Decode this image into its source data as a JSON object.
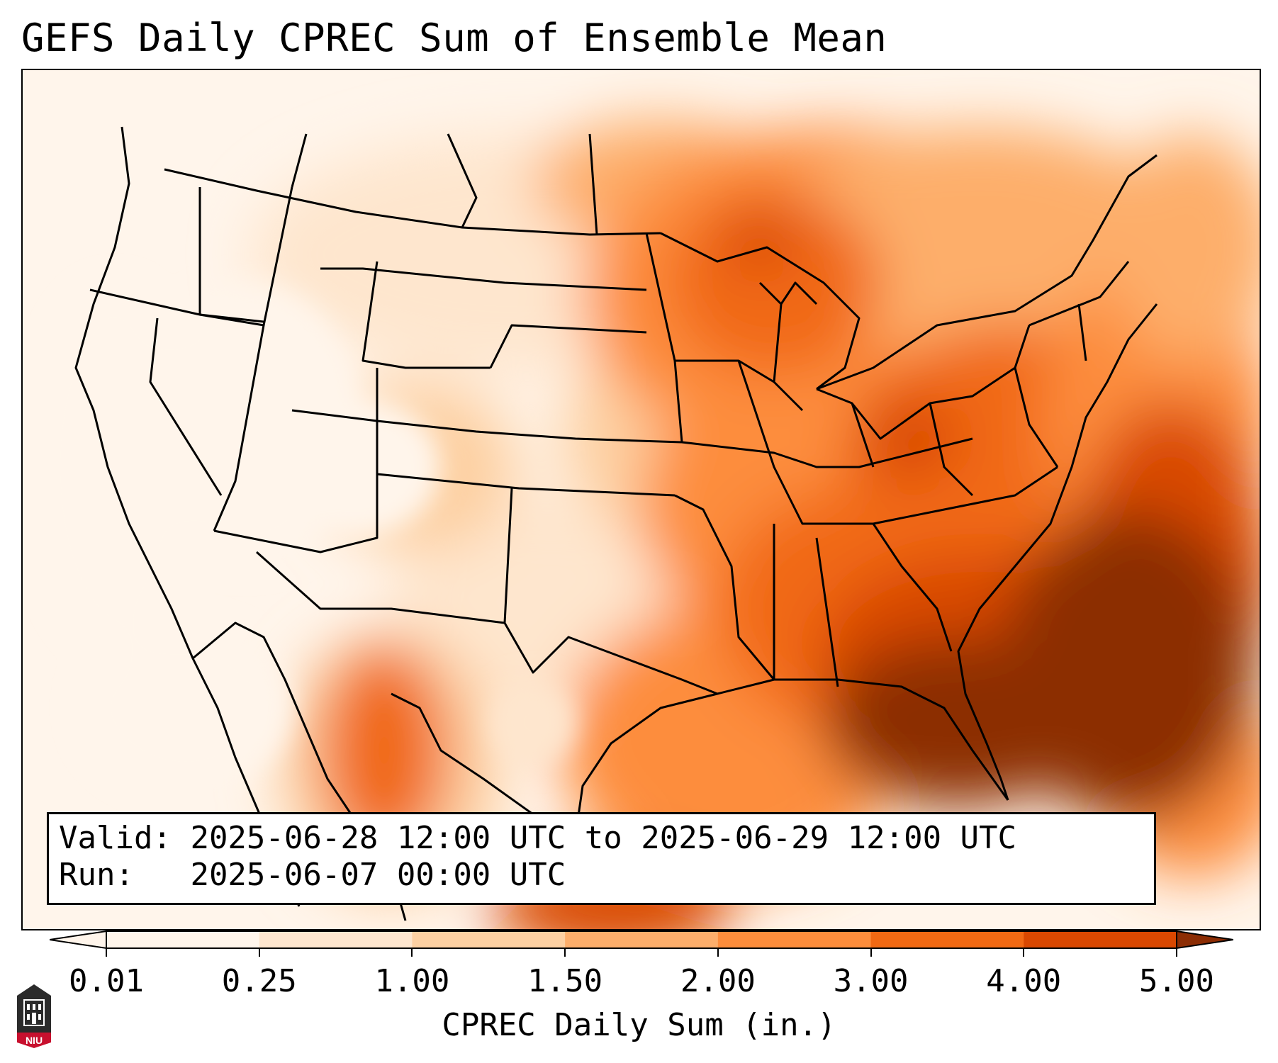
{
  "title": "GEFS Daily CPREC Sum of Ensemble Mean",
  "info": {
    "valid_label": "Valid:",
    "valid_value": "2025-06-28 12:00 UTC to 2025-06-29 12:00 UTC",
    "run_label": "Run:",
    "run_value": "2025-06-07 00:00 UTC"
  },
  "colorbar": {
    "label": "CPREC Daily Sum (in.)",
    "ticks": [
      "0.01",
      "0.25",
      "1.00",
      "1.50",
      "2.00",
      "3.00",
      "4.00",
      "5.00"
    ],
    "colors": [
      "#fff5eb",
      "#fee6ce",
      "#fdd0a2",
      "#fdae6b",
      "#fd8d3c",
      "#f16913",
      "#d94801",
      "#8c2d04"
    ]
  },
  "logo": {
    "text": "NIU",
    "icon": "niu-logo-icon",
    "colors": {
      "shield": "#2b2b2b",
      "band": "#c8102e"
    }
  }
}
